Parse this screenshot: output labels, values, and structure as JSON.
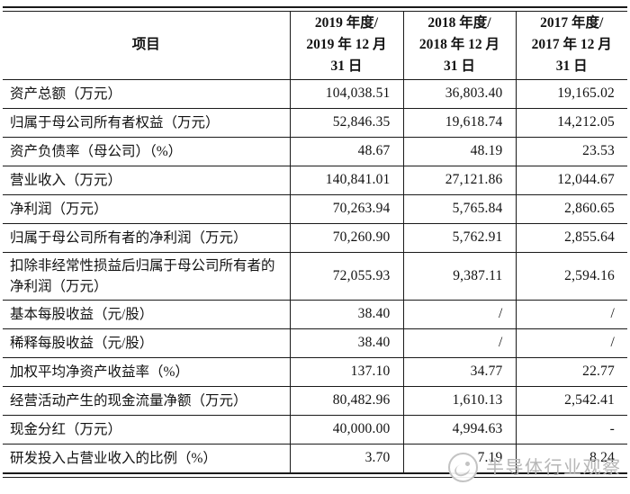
{
  "table": {
    "header": {
      "item_col": "项目",
      "year_cols": [
        {
          "lines": [
            "2019 年度/",
            "2019 年 12 月",
            "31 日"
          ]
        },
        {
          "lines": [
            "2018 年度/",
            "2018 年 12 月",
            "31 日"
          ]
        },
        {
          "lines": [
            "2017 年度/",
            "2017 年 12 月",
            "31 日"
          ]
        }
      ]
    },
    "rows": [
      {
        "label": "资产总额（万元）",
        "v2019": "104,038.51",
        "v2018": "36,803.40",
        "v2017": "19,165.02"
      },
      {
        "label": "归属于母公司所有者权益（万元）",
        "v2019": "52,846.35",
        "v2018": "19,618.74",
        "v2017": "14,212.05"
      },
      {
        "label": "资产负债率（母公司）（%）",
        "v2019": "48.67",
        "v2018": "48.19",
        "v2017": "23.53"
      },
      {
        "label": "营业收入（万元）",
        "v2019": "140,841.01",
        "v2018": "27,121.86",
        "v2017": "12,044.67"
      },
      {
        "label": "净利润（万元）",
        "v2019": "70,263.94",
        "v2018": "5,765.84",
        "v2017": "2,860.65"
      },
      {
        "label": "归属于母公司所有者的净利润（万元）",
        "v2019": "70,260.90",
        "v2018": "5,762.91",
        "v2017": "2,855.64"
      },
      {
        "label": "扣除非经常性损益后归属于母公司所有者的净利润（万元）",
        "v2019": "72,055.93",
        "v2018": "9,387.11",
        "v2017": "2,594.16"
      },
      {
        "label": "基本每股收益（元/股）",
        "v2019": "38.40",
        "v2018": "/",
        "v2017": "/"
      },
      {
        "label": "稀释每股收益（元/股）",
        "v2019": "38.40",
        "v2018": "/",
        "v2017": "/"
      },
      {
        "label": "加权平均净资产收益率（%）",
        "v2019": "137.10",
        "v2018": "34.77",
        "v2017": "22.77"
      },
      {
        "label": "经营活动产生的现金流量净额（万元）",
        "v2019": "80,482.96",
        "v2018": "1,610.13",
        "v2017": "2,542.41"
      },
      {
        "label": "现金分红（万元）",
        "v2019": "40,000.00",
        "v2018": "4,994.63",
        "v2017": "-"
      },
      {
        "label": "研发投入占营业收入的比例（%）",
        "v2019": "3.70",
        "v2018": "7.19",
        "v2017": "8.24"
      }
    ]
  },
  "watermark": {
    "text": "半导体行业观察",
    "color": "#b6b6b6"
  }
}
